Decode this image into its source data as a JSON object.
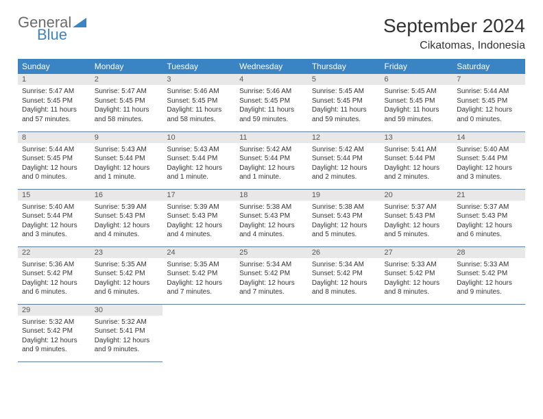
{
  "logo": {
    "general": "General",
    "blue": "Blue"
  },
  "title": "September 2024",
  "location": "Cikatomas, Indonesia",
  "colors": {
    "header_bg": "#3b84c4",
    "header_text": "#ffffff",
    "daynum_bg": "#e8e8e8",
    "daynum_text": "#555555",
    "body_text": "#333333",
    "rule": "#5a7a9a",
    "logo_gray": "#6b6b6b",
    "logo_blue": "#3b84c4",
    "page_bg": "#ffffff"
  },
  "typography": {
    "title_fontsize": 28,
    "location_fontsize": 16,
    "header_fontsize": 12,
    "daynum_fontsize": 11,
    "body_fontsize": 10,
    "logo_fontsize": 22
  },
  "weekdays": [
    "Sunday",
    "Monday",
    "Tuesday",
    "Wednesday",
    "Thursday",
    "Friday",
    "Saturday"
  ],
  "days": [
    {
      "n": "1",
      "sunrise": "Sunrise: 5:47 AM",
      "sunset": "Sunset: 5:45 PM",
      "daylight": "Daylight: 11 hours and 57 minutes."
    },
    {
      "n": "2",
      "sunrise": "Sunrise: 5:47 AM",
      "sunset": "Sunset: 5:45 PM",
      "daylight": "Daylight: 11 hours and 58 minutes."
    },
    {
      "n": "3",
      "sunrise": "Sunrise: 5:46 AM",
      "sunset": "Sunset: 5:45 PM",
      "daylight": "Daylight: 11 hours and 58 minutes."
    },
    {
      "n": "4",
      "sunrise": "Sunrise: 5:46 AM",
      "sunset": "Sunset: 5:45 PM",
      "daylight": "Daylight: 11 hours and 59 minutes."
    },
    {
      "n": "5",
      "sunrise": "Sunrise: 5:45 AM",
      "sunset": "Sunset: 5:45 PM",
      "daylight": "Daylight: 11 hours and 59 minutes."
    },
    {
      "n": "6",
      "sunrise": "Sunrise: 5:45 AM",
      "sunset": "Sunset: 5:45 PM",
      "daylight": "Daylight: 11 hours and 59 minutes."
    },
    {
      "n": "7",
      "sunrise": "Sunrise: 5:44 AM",
      "sunset": "Sunset: 5:45 PM",
      "daylight": "Daylight: 12 hours and 0 minutes."
    },
    {
      "n": "8",
      "sunrise": "Sunrise: 5:44 AM",
      "sunset": "Sunset: 5:45 PM",
      "daylight": "Daylight: 12 hours and 0 minutes."
    },
    {
      "n": "9",
      "sunrise": "Sunrise: 5:43 AM",
      "sunset": "Sunset: 5:44 PM",
      "daylight": "Daylight: 12 hours and 1 minute."
    },
    {
      "n": "10",
      "sunrise": "Sunrise: 5:43 AM",
      "sunset": "Sunset: 5:44 PM",
      "daylight": "Daylight: 12 hours and 1 minute."
    },
    {
      "n": "11",
      "sunrise": "Sunrise: 5:42 AM",
      "sunset": "Sunset: 5:44 PM",
      "daylight": "Daylight: 12 hours and 1 minute."
    },
    {
      "n": "12",
      "sunrise": "Sunrise: 5:42 AM",
      "sunset": "Sunset: 5:44 PM",
      "daylight": "Daylight: 12 hours and 2 minutes."
    },
    {
      "n": "13",
      "sunrise": "Sunrise: 5:41 AM",
      "sunset": "Sunset: 5:44 PM",
      "daylight": "Daylight: 12 hours and 2 minutes."
    },
    {
      "n": "14",
      "sunrise": "Sunrise: 5:40 AM",
      "sunset": "Sunset: 5:44 PM",
      "daylight": "Daylight: 12 hours and 3 minutes."
    },
    {
      "n": "15",
      "sunrise": "Sunrise: 5:40 AM",
      "sunset": "Sunset: 5:44 PM",
      "daylight": "Daylight: 12 hours and 3 minutes."
    },
    {
      "n": "16",
      "sunrise": "Sunrise: 5:39 AM",
      "sunset": "Sunset: 5:43 PM",
      "daylight": "Daylight: 12 hours and 4 minutes."
    },
    {
      "n": "17",
      "sunrise": "Sunrise: 5:39 AM",
      "sunset": "Sunset: 5:43 PM",
      "daylight": "Daylight: 12 hours and 4 minutes."
    },
    {
      "n": "18",
      "sunrise": "Sunrise: 5:38 AM",
      "sunset": "Sunset: 5:43 PM",
      "daylight": "Daylight: 12 hours and 4 minutes."
    },
    {
      "n": "19",
      "sunrise": "Sunrise: 5:38 AM",
      "sunset": "Sunset: 5:43 PM",
      "daylight": "Daylight: 12 hours and 5 minutes."
    },
    {
      "n": "20",
      "sunrise": "Sunrise: 5:37 AM",
      "sunset": "Sunset: 5:43 PM",
      "daylight": "Daylight: 12 hours and 5 minutes."
    },
    {
      "n": "21",
      "sunrise": "Sunrise: 5:37 AM",
      "sunset": "Sunset: 5:43 PM",
      "daylight": "Daylight: 12 hours and 6 minutes."
    },
    {
      "n": "22",
      "sunrise": "Sunrise: 5:36 AM",
      "sunset": "Sunset: 5:42 PM",
      "daylight": "Daylight: 12 hours and 6 minutes."
    },
    {
      "n": "23",
      "sunrise": "Sunrise: 5:35 AM",
      "sunset": "Sunset: 5:42 PM",
      "daylight": "Daylight: 12 hours and 6 minutes."
    },
    {
      "n": "24",
      "sunrise": "Sunrise: 5:35 AM",
      "sunset": "Sunset: 5:42 PM",
      "daylight": "Daylight: 12 hours and 7 minutes."
    },
    {
      "n": "25",
      "sunrise": "Sunrise: 5:34 AM",
      "sunset": "Sunset: 5:42 PM",
      "daylight": "Daylight: 12 hours and 7 minutes."
    },
    {
      "n": "26",
      "sunrise": "Sunrise: 5:34 AM",
      "sunset": "Sunset: 5:42 PM",
      "daylight": "Daylight: 12 hours and 8 minutes."
    },
    {
      "n": "27",
      "sunrise": "Sunrise: 5:33 AM",
      "sunset": "Sunset: 5:42 PM",
      "daylight": "Daylight: 12 hours and 8 minutes."
    },
    {
      "n": "28",
      "sunrise": "Sunrise: 5:33 AM",
      "sunset": "Sunset: 5:42 PM",
      "daylight": "Daylight: 12 hours and 9 minutes."
    },
    {
      "n": "29",
      "sunrise": "Sunrise: 5:32 AM",
      "sunset": "Sunset: 5:42 PM",
      "daylight": "Daylight: 12 hours and 9 minutes."
    },
    {
      "n": "30",
      "sunrise": "Sunrise: 5:32 AM",
      "sunset": "Sunset: 5:41 PM",
      "daylight": "Daylight: 12 hours and 9 minutes."
    }
  ]
}
